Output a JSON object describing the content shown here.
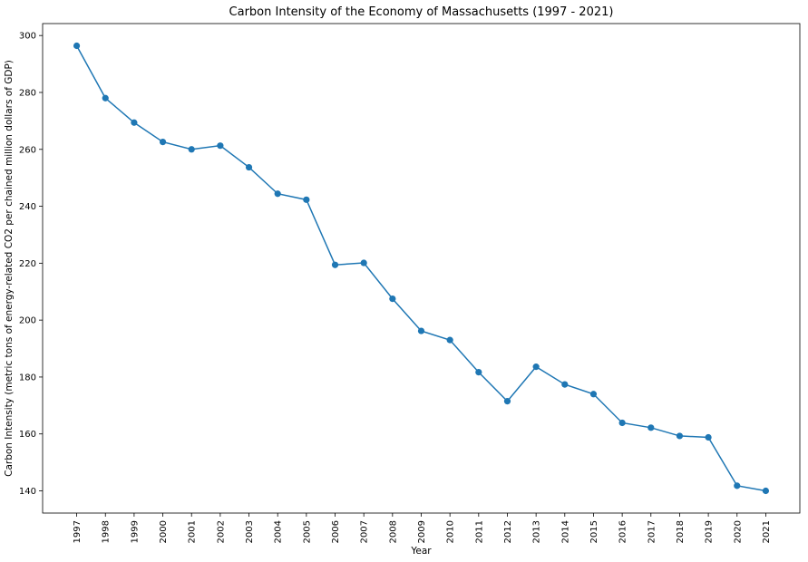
{
  "chart_data": {
    "type": "line",
    "title": "Carbon Intensity of the Economy of Massachusetts (1997 - 2021)",
    "xlabel": "Year",
    "ylabel": "Carbon Intensity (metric tons of energy-related CO2 per chained million dollars of GDP)",
    "categories": [
      "1997",
      "1998",
      "1999",
      "2000",
      "2001",
      "2002",
      "2003",
      "2004",
      "2005",
      "2006",
      "2007",
      "2008",
      "2009",
      "2010",
      "2011",
      "2012",
      "2013",
      "2014",
      "2015",
      "2016",
      "2017",
      "2018",
      "2019",
      "2020",
      "2021"
    ],
    "series": [
      {
        "values": [
          296.4,
          278.0,
          269.4,
          262.6,
          260.0,
          261.3,
          253.7,
          244.4,
          242.3,
          219.4,
          220.1,
          207.5,
          196.2,
          193.0,
          181.7,
          171.5,
          183.6,
          177.4,
          174.0,
          163.9,
          162.2,
          159.3,
          158.8,
          141.8,
          140.0
        ],
        "color": "#1f77b4"
      }
    ],
    "yticks": [
      140,
      160,
      180,
      200,
      220,
      240,
      260,
      280,
      300
    ],
    "ylim": [
      132.2,
      304.2
    ],
    "grid": false,
    "legend": "none"
  }
}
